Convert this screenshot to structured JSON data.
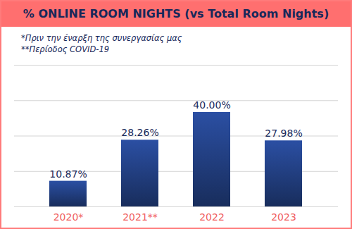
{
  "chart_data": {
    "type": "bar",
    "title": "% ONLINE ROOM NIGHTS (vs Total Room Nights)",
    "annotations": [
      "*Πριν την έναρξη της συνεργασίας μας",
      "**Περίοδος COVID-19"
    ],
    "categories": [
      "2020*",
      "2021**",
      "2022",
      "2023"
    ],
    "values": [
      10.87,
      28.26,
      40.0,
      27.98
    ],
    "value_labels": [
      "10.87%",
      "28.26%",
      "40.00%",
      "27.98%"
    ],
    "color": "#2b4fa3",
    "ylim": [
      0,
      60
    ],
    "yticks": [
      0,
      15,
      30,
      45,
      60
    ],
    "grid": true,
    "data_labels": true,
    "tick_labels": "x"
  }
}
